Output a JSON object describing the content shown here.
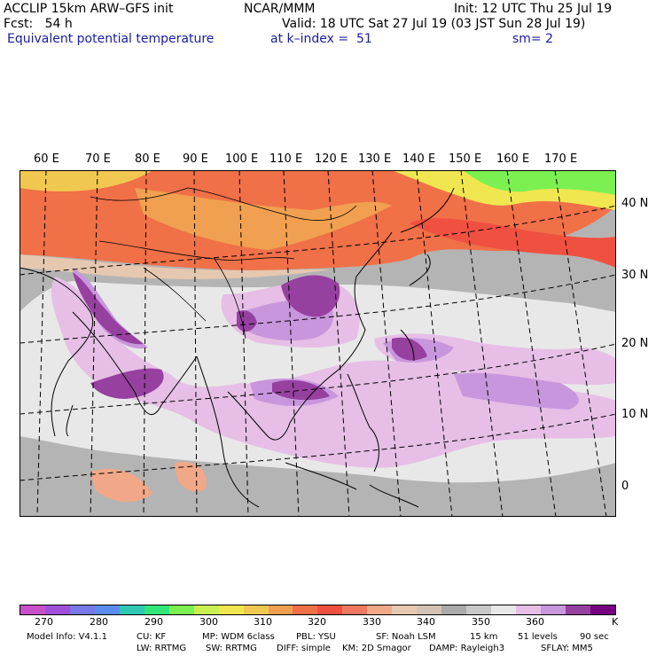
{
  "header": {
    "model": "ACCLIP 15km ARW–GFS init",
    "org": "NCAR/MMM",
    "init": "Init: 12 UTC Thu 25 Jul 19",
    "fcst": "Fcst:   54 h",
    "valid": "Valid: 18 UTC Sat 27 Jul 19 (03 JST Sun 28 Jul 19)",
    "field": "Equivalent potential temperature",
    "level": "at k–index =  51",
    "smooth": "sm= 2"
  },
  "map": {
    "longitude_labels": [
      "60 E",
      "70 E",
      "80 E",
      "90 E",
      "100 E",
      "110 E",
      "120 E",
      "130 E",
      "140 E",
      "150 E",
      "160 E",
      "170 E"
    ],
    "latitude_labels": [
      "40 N",
      "30 N",
      "20 N",
      "10 N",
      "0"
    ]
  },
  "colorbar": {
    "colors": [
      "#c850c8",
      "#a050d8",
      "#7878e8",
      "#5a8cf0",
      "#2ec8b4",
      "#30e878",
      "#7cf050",
      "#c8f050",
      "#f0e650",
      "#f0c850",
      "#f0a050",
      "#f07048",
      "#f05040",
      "#f07860",
      "#f0a888",
      "#e6c8b0",
      "#d2c3b4",
      "#aaaaaa",
      "#c8c8c8",
      "#e8e8e8",
      "#e6bee6",
      "#c896dc",
      "#9640a0",
      "#780082"
    ],
    "labels": [
      "270",
      "280",
      "290",
      "300",
      "310",
      "320",
      "330",
      "340",
      "350",
      "360"
    ],
    "unit": "K"
  },
  "footer": {
    "line1": [
      "Model Info: V4.1.1",
      "CU: KF",
      "MP: WDM 6class",
      "PBL: YSU",
      "SF: Noah LSM",
      "15 km",
      "51 levels",
      "90 sec"
    ],
    "line2": [
      "LW: RRTMG",
      "SW: RRTMG",
      "DIFF: simple",
      "KM: 2D Smagor",
      "DAMP: Rayleigh3",
      "SFLAY: MM5"
    ]
  }
}
